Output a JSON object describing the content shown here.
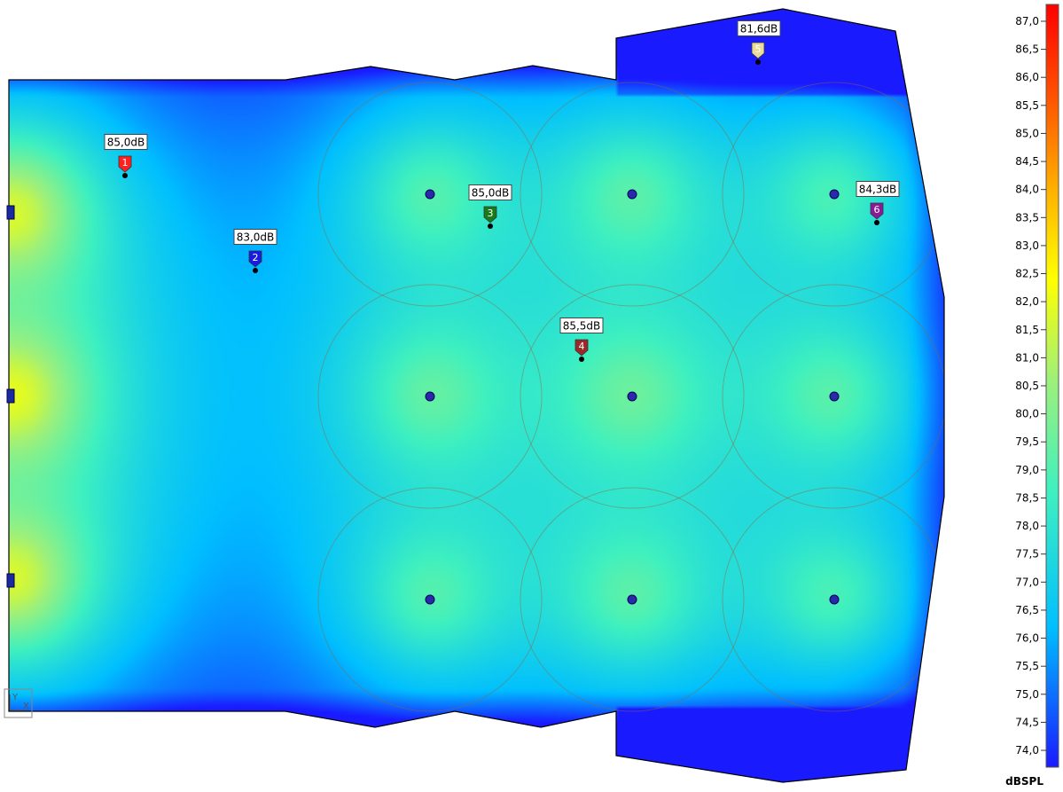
{
  "colorbar": {
    "unit": "dBSPL",
    "min": 73.7,
    "max": 87.3,
    "ticks": [
      "87,0",
      "86,5",
      "86,0",
      "85,5",
      "85,0",
      "84,5",
      "84,0",
      "83,5",
      "83,0",
      "82,5",
      "82,0",
      "81,5",
      "81,0",
      "80,5",
      "80,0",
      "79,5",
      "79,0",
      "78,5",
      "78,0",
      "77,5",
      "77,0",
      "76,5",
      "76,0",
      "75,5",
      "75,0",
      "74,5",
      "74,0"
    ],
    "tick_values": [
      87.0,
      86.5,
      86.0,
      85.5,
      85.0,
      84.5,
      84.0,
      83.5,
      83.0,
      82.5,
      82.0,
      81.5,
      81.0,
      80.5,
      80.0,
      79.5,
      79.0,
      78.5,
      78.0,
      77.5,
      77.0,
      76.5,
      76.0,
      75.5,
      75.0,
      74.5,
      74.0
    ],
    "colors": [
      "#1a1aff",
      "#00bfff",
      "#3ef0c0",
      "#9ef07a",
      "#ffff00",
      "#ffb000",
      "#ff5500",
      "#ff0000"
    ]
  },
  "markers": [
    {
      "num": "1",
      "label": "85,0dB",
      "color": "#ff2020",
      "text_color": "#ffffff"
    },
    {
      "num": "2",
      "label": "83,0dB",
      "color": "#1a1ae0",
      "text_color": "#ffffff"
    },
    {
      "num": "3",
      "label": "85,0dB",
      "color": "#1a7a1a",
      "text_color": "#ffffff"
    },
    {
      "num": "4",
      "label": "85,5dB",
      "color": "#9a2a2a",
      "text_color": "#ffffff"
    },
    {
      "num": "5",
      "label": "81,6dB",
      "color": "#e8dc9a",
      "text_color": "#ffffff"
    },
    {
      "num": "6",
      "label": "84,3dB",
      "color": "#8a1a9a",
      "text_color": "#ffffff"
    }
  ],
  "axis_indicator": {
    "y": "Y",
    "x": "X"
  }
}
